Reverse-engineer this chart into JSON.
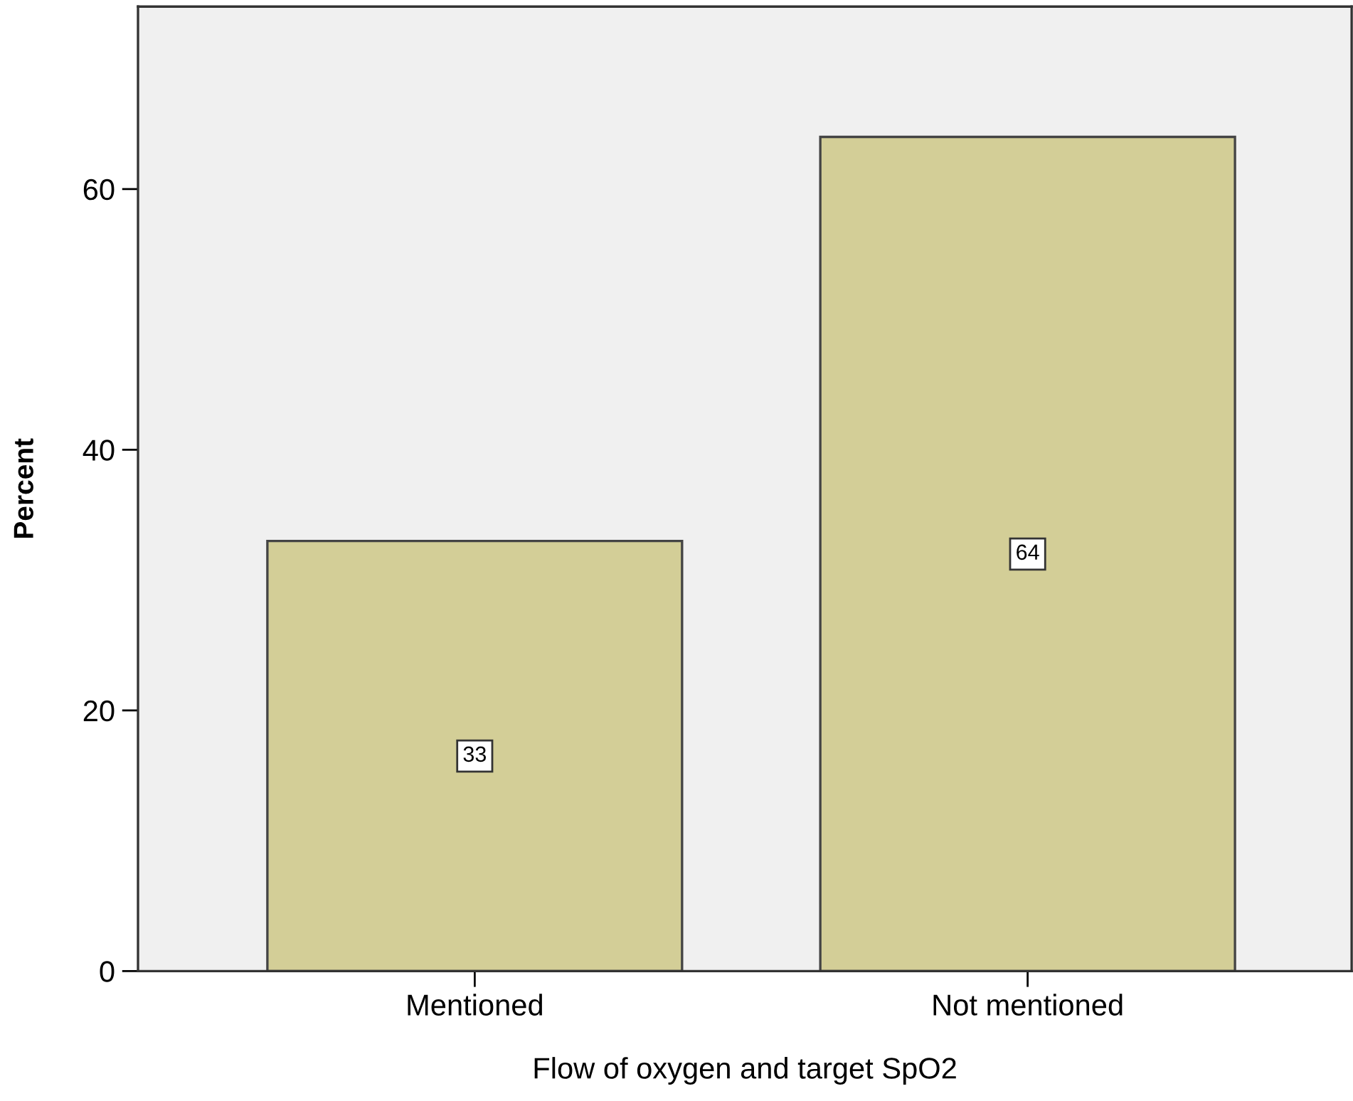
{
  "chart_data": {
    "type": "bar",
    "xlabel": "Flow of oxygen and target SpO2",
    "ylabel": "Percent",
    "categories": [
      "Mentioned",
      "Not mentioned"
    ],
    "values": [
      33,
      64
    ],
    "color": "#d3ce97",
    "ylim": [
      0,
      74
    ],
    "yticks": [
      0,
      20,
      40,
      60
    ],
    "data_labels": true,
    "grid": false,
    "legend": false
  }
}
